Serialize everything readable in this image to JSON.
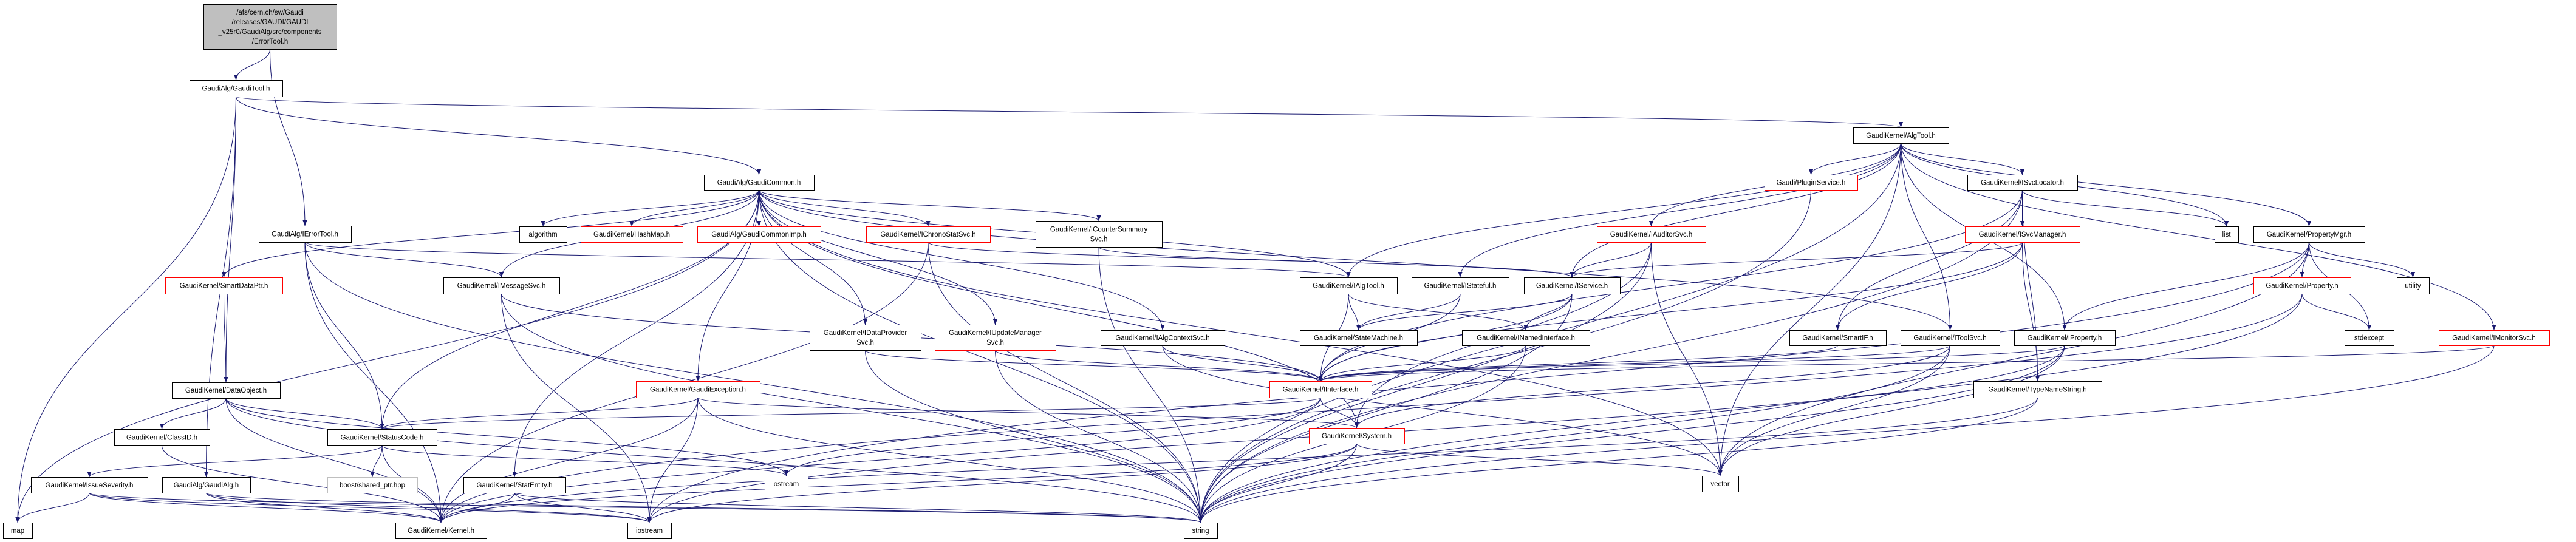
{
  "diagram": {
    "colors": {
      "edge": "#191970",
      "node_border": "#000000",
      "incomplete_border": "#ff0000",
      "root_fill": "#bfbfbf",
      "external_border": "#bfbfbf"
    },
    "nodes": [
      {
        "id": "root",
        "lines": [
          "/afs/cern.ch/sw/Gaudi",
          "/releases/GAUDI/GAUDI",
          "_v25r0/GaudiAlg/src/components",
          "/ErrorTool.h"
        ],
        "style": "root"
      },
      {
        "id": "GaudiTool",
        "lines": [
          "GaudiAlg/GaudiTool.h"
        ],
        "style": "normal"
      },
      {
        "id": "GaudiCommon",
        "lines": [
          "GaudiAlg/GaudiCommon.h"
        ],
        "style": "normal"
      },
      {
        "id": "AlgTool",
        "lines": [
          "GaudiKernel/AlgTool.h"
        ],
        "style": "normal"
      },
      {
        "id": "IErrorTool",
        "lines": [
          "GaudiAlg/IErrorTool.h"
        ],
        "style": "normal"
      },
      {
        "id": "algorithm",
        "lines": [
          "algorithm"
        ],
        "style": "normal"
      },
      {
        "id": "HashMap",
        "lines": [
          "GaudiKernel/HashMap.h"
        ],
        "style": "incomplete"
      },
      {
        "id": "GaudiCommonImp",
        "lines": [
          "GaudiAlg/GaudiCommonImp.h"
        ],
        "style": "incomplete"
      },
      {
        "id": "IChronoStatSvc",
        "lines": [
          "GaudiKernel/IChronoStatSvc.h"
        ],
        "style": "incomplete"
      },
      {
        "id": "ICounterSummarySvc",
        "lines": [
          "GaudiKernel/ICounterSummary",
          "Svc.h"
        ],
        "style": "normal"
      },
      {
        "id": "PluginService",
        "lines": [
          "Gaudi/PluginService.h"
        ],
        "style": "incomplete"
      },
      {
        "id": "IAuditorSvc",
        "lines": [
          "GaudiKernel/IAuditorSvc.h"
        ],
        "style": "incomplete"
      },
      {
        "id": "ISvcLocator",
        "lines": [
          "GaudiKernel/ISvcLocator.h"
        ],
        "style": "normal"
      },
      {
        "id": "ISvcManager",
        "lines": [
          "GaudiKernel/ISvcManager.h"
        ],
        "style": "incomplete"
      },
      {
        "id": "list",
        "lines": [
          "list"
        ],
        "style": "normal"
      },
      {
        "id": "PropertyMgr",
        "lines": [
          "GaudiKernel/PropertyMgr.h"
        ],
        "style": "normal"
      },
      {
        "id": "SmartDataPtr",
        "lines": [
          "GaudiKernel/SmartDataPtr.h"
        ],
        "style": "incomplete"
      },
      {
        "id": "IMessageSvc",
        "lines": [
          "GaudiKernel/IMessageSvc.h"
        ],
        "style": "normal"
      },
      {
        "id": "IAlgTool",
        "lines": [
          "GaudiKernel/IAlgTool.h"
        ],
        "style": "normal"
      },
      {
        "id": "IStateful",
        "lines": [
          "GaudiKernel/IStateful.h"
        ],
        "style": "normal"
      },
      {
        "id": "IService",
        "lines": [
          "GaudiKernel/IService.h"
        ],
        "style": "normal"
      },
      {
        "id": "Property",
        "lines": [
          "GaudiKernel/Property.h"
        ],
        "style": "incomplete"
      },
      {
        "id": "utility",
        "lines": [
          "utility"
        ],
        "style": "normal"
      },
      {
        "id": "IDataProviderSvc",
        "lines": [
          "GaudiKernel/IDataProvider",
          "Svc.h"
        ],
        "style": "normal"
      },
      {
        "id": "IUpdateManagerSvc",
        "lines": [
          "GaudiKernel/IUpdateManager",
          "Svc.h"
        ],
        "style": "incomplete"
      },
      {
        "id": "IAlgContextSvc",
        "lines": [
          "GaudiKernel/IAlgContextSvc.h"
        ],
        "style": "normal"
      },
      {
        "id": "StateMachine",
        "lines": [
          "GaudiKernel/StateMachine.h"
        ],
        "style": "normal"
      },
      {
        "id": "INamedInterface",
        "lines": [
          "GaudiKernel/INamedInterface.h"
        ],
        "style": "normal"
      },
      {
        "id": "SmartIF",
        "lines": [
          "GaudiKernel/SmartIF.h"
        ],
        "style": "normal"
      },
      {
        "id": "IToolSvc",
        "lines": [
          "GaudiKernel/IToolSvc.h"
        ],
        "style": "normal"
      },
      {
        "id": "IProperty",
        "lines": [
          "GaudiKernel/IProperty.h"
        ],
        "style": "normal"
      },
      {
        "id": "stdexcept",
        "lines": [
          "stdexcept"
        ],
        "style": "normal"
      },
      {
        "id": "IMonitorSvc",
        "lines": [
          "GaudiKernel/IMonitorSvc.h"
        ],
        "style": "incomplete"
      },
      {
        "id": "DataObject",
        "lines": [
          "GaudiKernel/DataObject.h"
        ],
        "style": "normal"
      },
      {
        "id": "GaudiException",
        "lines": [
          "GaudiKernel/GaudiException.h"
        ],
        "style": "incomplete"
      },
      {
        "id": "IInterface",
        "lines": [
          "GaudiKernel/IInterface.h"
        ],
        "style": "incomplete"
      },
      {
        "id": "TypeNameString",
        "lines": [
          "GaudiKernel/TypeNameString.h"
        ],
        "style": "normal"
      },
      {
        "id": "ClassID",
        "lines": [
          "GaudiKernel/ClassID.h"
        ],
        "style": "normal"
      },
      {
        "id": "StatusCode",
        "lines": [
          "GaudiKernel/StatusCode.h"
        ],
        "style": "normal"
      },
      {
        "id": "System",
        "lines": [
          "GaudiKernel/System.h"
        ],
        "style": "incomplete"
      },
      {
        "id": "IssueSeverity",
        "lines": [
          "GaudiKernel/IssueSeverity.h"
        ],
        "style": "normal"
      },
      {
        "id": "GaudiAlg",
        "lines": [
          "GaudiAlg/GaudiAlg.h"
        ],
        "style": "normal"
      },
      {
        "id": "boost",
        "lines": [
          "boost/shared_ptr.hpp"
        ],
        "style": "external"
      },
      {
        "id": "StatEntity",
        "lines": [
          "GaudiKernel/StatEntity.h"
        ],
        "style": "normal"
      },
      {
        "id": "ostream",
        "lines": [
          "ostream"
        ],
        "style": "normal"
      },
      {
        "id": "vector",
        "lines": [
          "vector"
        ],
        "style": "normal"
      },
      {
        "id": "map",
        "lines": [
          "map"
        ],
        "style": "normal"
      },
      {
        "id": "Kernel",
        "lines": [
          "GaudiKernel/Kernel.h"
        ],
        "style": "normal"
      },
      {
        "id": "iostream",
        "lines": [
          "iostream"
        ],
        "style": "normal"
      },
      {
        "id": "string",
        "lines": [
          "string"
        ],
        "style": "normal"
      }
    ],
    "edges": [
      [
        "root",
        "GaudiTool"
      ],
      [
        "root",
        "IErrorTool"
      ],
      [
        "GaudiTool",
        "GaudiCommon"
      ],
      [
        "GaudiTool",
        "AlgTool"
      ],
      [
        "GaudiTool",
        "DataObject"
      ],
      [
        "GaudiTool",
        "GaudiAlg"
      ],
      [
        "GaudiTool",
        "map"
      ],
      [
        "GaudiCommon",
        "GaudiCommonImp"
      ],
      [
        "GaudiCommonImp",
        "GaudiCommon"
      ],
      [
        "GaudiCommon",
        "algorithm"
      ],
      [
        "GaudiCommon",
        "HashMap"
      ],
      [
        "GaudiCommon",
        "IChronoStatSvc"
      ],
      [
        "GaudiCommon",
        "ICounterSummarySvc"
      ],
      [
        "GaudiCommon",
        "IMessageSvc"
      ],
      [
        "GaudiCommon",
        "SmartDataPtr"
      ],
      [
        "GaudiCommon",
        "StatusCode"
      ],
      [
        "GaudiCommon",
        "StatEntity"
      ],
      [
        "GaudiCommon",
        "IAlgTool"
      ],
      [
        "GaudiCommon",
        "IAlgContextSvc"
      ],
      [
        "GaudiCommon",
        "IDataProviderSvc"
      ],
      [
        "GaudiCommon",
        "IUpdateManagerSvc"
      ],
      [
        "GaudiCommon",
        "GaudiException"
      ],
      [
        "GaudiCommon",
        "IToolSvc"
      ],
      [
        "GaudiCommon",
        "System"
      ],
      [
        "GaudiCommon",
        "string"
      ],
      [
        "GaudiCommon",
        "vector"
      ],
      [
        "GaudiCommon",
        "map"
      ],
      [
        "IErrorTool",
        "IAlgTool"
      ],
      [
        "IErrorTool",
        "IMessageSvc"
      ],
      [
        "IErrorTool",
        "StatusCode"
      ],
      [
        "IErrorTool",
        "Kernel"
      ],
      [
        "IErrorTool",
        "string"
      ],
      [
        "SmartDataPtr",
        "DataObject"
      ],
      [
        "DataObject",
        "ClassID"
      ],
      [
        "DataObject",
        "StatusCode"
      ],
      [
        "DataObject",
        "Kernel"
      ],
      [
        "DataObject",
        "string"
      ],
      [
        "DataObject",
        "ostream"
      ],
      [
        "ClassID",
        "Kernel"
      ],
      [
        "StatusCode",
        "IssueSeverity"
      ],
      [
        "StatusCode",
        "boost"
      ],
      [
        "StatusCode",
        "Kernel"
      ],
      [
        "StatusCode",
        "ostream"
      ],
      [
        "IssueSeverity",
        "map"
      ],
      [
        "IssueSeverity",
        "Kernel"
      ],
      [
        "IssueSeverity",
        "string"
      ],
      [
        "IssueSeverity",
        "iostream"
      ],
      [
        "GaudiAlg",
        "Kernel"
      ],
      [
        "GaudiAlg",
        "iostream"
      ],
      [
        "GaudiAlg",
        "string"
      ],
      [
        "StatEntity",
        "Kernel"
      ],
      [
        "StatEntity",
        "iostream"
      ],
      [
        "StatEntity",
        "string"
      ],
      [
        "IMessageSvc",
        "IInterface"
      ],
      [
        "IMessageSvc",
        "iostream"
      ],
      [
        "IMessageSvc",
        "string"
      ],
      [
        "IChronoStatSvc",
        "IService"
      ],
      [
        "IChronoStatSvc",
        "Kernel"
      ],
      [
        "IChronoStatSvc",
        "string"
      ],
      [
        "ICounterSummarySvc",
        "IService"
      ],
      [
        "ICounterSummarySvc",
        "string"
      ],
      [
        "IDataProviderSvc",
        "IInterface"
      ],
      [
        "IDataProviderSvc",
        "string"
      ],
      [
        "IUpdateManagerSvc",
        "IInterface"
      ],
      [
        "IUpdateManagerSvc",
        "string"
      ],
      [
        "IAlgContextSvc",
        "IInterface"
      ],
      [
        "IAlgContextSvc",
        "vector"
      ],
      [
        "GaudiException",
        "StatusCode"
      ],
      [
        "GaudiException",
        "System"
      ],
      [
        "GaudiException",
        "Kernel"
      ],
      [
        "GaudiException",
        "iostream"
      ],
      [
        "GaudiException",
        "string"
      ],
      [
        "IAlgTool",
        "StateMachine"
      ],
      [
        "IAlgTool",
        "INamedInterface"
      ],
      [
        "IAlgTool",
        "IInterface"
      ],
      [
        "IStateful",
        "StateMachine"
      ],
      [
        "IStateful",
        "IInterface"
      ],
      [
        "IService",
        "StateMachine"
      ],
      [
        "IService",
        "INamedInterface"
      ],
      [
        "IService",
        "IInterface"
      ],
      [
        "IService",
        "string"
      ],
      [
        "INamedInterface",
        "IInterface"
      ],
      [
        "INamedInterface",
        "string"
      ],
      [
        "IInterface",
        "System"
      ],
      [
        "IInterface",
        "StatusCode"
      ],
      [
        "IInterface",
        "Kernel"
      ],
      [
        "IInterface",
        "ostream"
      ],
      [
        "System",
        "string"
      ],
      [
        "System",
        "vector"
      ],
      [
        "System",
        "Kernel"
      ],
      [
        "System",
        "iostream"
      ],
      [
        "AlgTool",
        "IAlgTool"
      ],
      [
        "AlgTool",
        "IService"
      ],
      [
        "AlgTool",
        "IStateful"
      ],
      [
        "AlgTool",
        "PluginService"
      ],
      [
        "AlgTool",
        "IAuditorSvc"
      ],
      [
        "AlgTool",
        "ISvcLocator"
      ],
      [
        "AlgTool",
        "IProperty"
      ],
      [
        "AlgTool",
        "PropertyMgr"
      ],
      [
        "AlgTool",
        "IMonitorSvc"
      ],
      [
        "AlgTool",
        "IToolSvc"
      ],
      [
        "AlgTool",
        "list"
      ],
      [
        "AlgTool",
        "string"
      ],
      [
        "AlgTool",
        "vector"
      ],
      [
        "PluginService",
        "string"
      ],
      [
        "IAuditorSvc",
        "IService"
      ],
      [
        "IAuditorSvc",
        "System"
      ],
      [
        "IAuditorSvc",
        "string"
      ],
      [
        "IAuditorSvc",
        "vector"
      ],
      [
        "ISvcLocator",
        "ISvcManager"
      ],
      [
        "ISvcLocator",
        "IInterface"
      ],
      [
        "ISvcLocator",
        "SmartIF"
      ],
      [
        "ISvcLocator",
        "TypeNameString"
      ],
      [
        "ISvcLocator",
        "string"
      ],
      [
        "ISvcLocator",
        "list"
      ],
      [
        "ISvcManager",
        "IService"
      ],
      [
        "ISvcManager",
        "SmartIF"
      ],
      [
        "ISvcManager",
        "TypeNameString"
      ],
      [
        "ISvcManager",
        "IInterface"
      ],
      [
        "SmartIF",
        "IInterface"
      ],
      [
        "IToolSvc",
        "IInterface"
      ],
      [
        "IToolSvc",
        "System"
      ],
      [
        "IToolSvc",
        "string"
      ],
      [
        "IToolSvc",
        "vector"
      ],
      [
        "IProperty",
        "IInterface"
      ],
      [
        "IProperty",
        "string"
      ],
      [
        "IProperty",
        "vector"
      ],
      [
        "IProperty",
        "iostream"
      ],
      [
        "TypeNameString",
        "string"
      ],
      [
        "TypeNameString",
        "Kernel"
      ],
      [
        "PropertyMgr",
        "Property"
      ],
      [
        "PropertyMgr",
        "utility"
      ],
      [
        "PropertyMgr",
        "stdexcept"
      ],
      [
        "PropertyMgr",
        "IProperty"
      ],
      [
        "PropertyMgr",
        "vector"
      ],
      [
        "PropertyMgr",
        "iostream"
      ],
      [
        "Property",
        "stdexcept"
      ],
      [
        "Property",
        "string"
      ],
      [
        "Property",
        "Kernel"
      ],
      [
        "IMonitorSvc",
        "IInterface"
      ],
      [
        "IMonitorSvc",
        "string"
      ]
    ]
  }
}
